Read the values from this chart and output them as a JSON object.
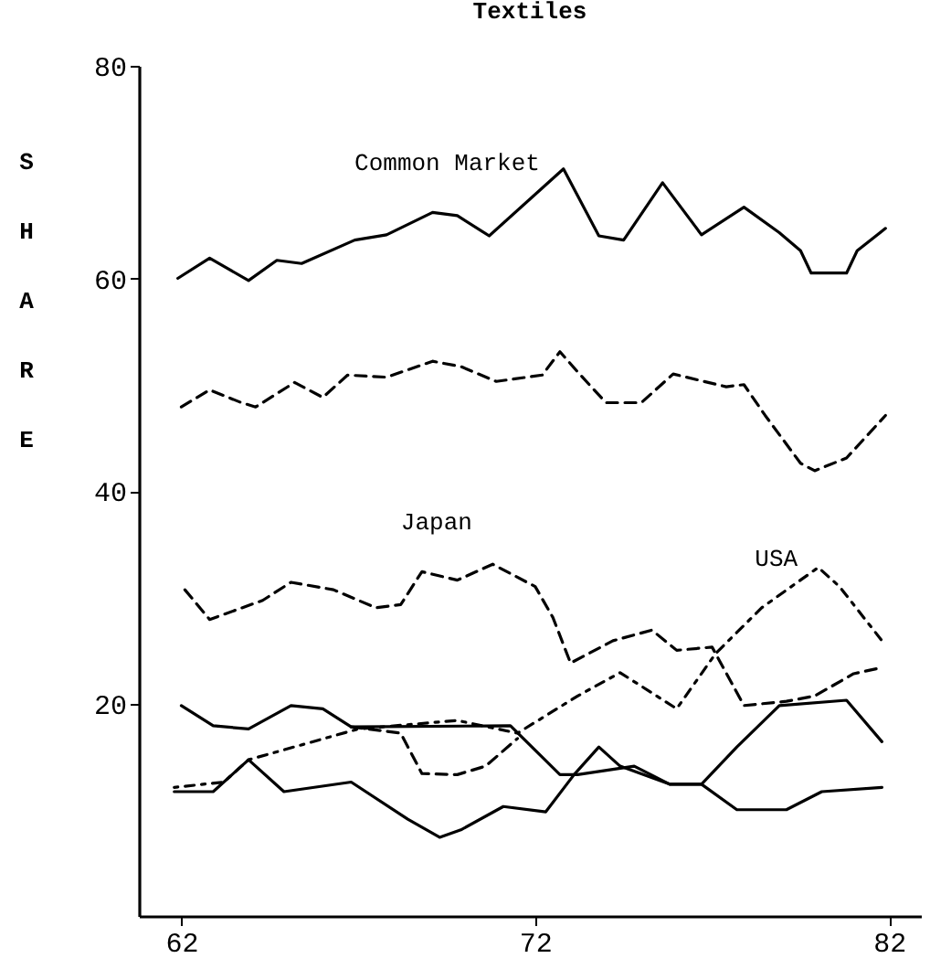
{
  "chart_data": {
    "type": "line",
    "title": "Textiles",
    "ylabel": "SHARE",
    "xlim": [
      60.8,
      82.9
    ],
    "xticks": [
      62,
      72,
      82
    ],
    "ylim": [
      0,
      80
    ],
    "yticks": [
      20,
      40,
      60,
      80
    ],
    "marker": "none",
    "annotations": [
      {
        "text": "Common Market",
        "x": 69.1,
        "y": 66.2
      },
      {
        "text": "Japan",
        "x": 68.8,
        "y": 32.4
      },
      {
        "text": "USA",
        "x": 78.4,
        "y": 29.0
      }
    ],
    "series": [
      {
        "color": "#000000",
        "line_style": "solid",
        "x": [
          61.9,
          62.8,
          63.9,
          64.7,
          65.4,
          66.9,
          67.8,
          69.1,
          69.8,
          70.7,
          72.8,
          73.8,
          74.5,
          75.6,
          76.7,
          77.9,
          78.9,
          79.5,
          79.8,
          80.8,
          81.1,
          81.9
        ],
        "values": [
          60.0,
          61.9,
          59.8,
          61.7,
          61.4,
          63.6,
          64.1,
          66.2,
          65.9,
          64.0,
          70.3,
          64.0,
          63.6,
          69.0,
          64.1,
          66.7,
          64.3,
          62.6,
          60.5,
          60.5,
          62.6,
          64.7
        ]
      },
      {
        "color": "#000000",
        "line_style": "dashed",
        "x": [
          62.0,
          62.8,
          63.7,
          64.1,
          65.2,
          66.0,
          66.7,
          67.8,
          69.1,
          69.9,
          70.9,
          72.2,
          72.7,
          73.2,
          74.0,
          75.0,
          75.9,
          77.4,
          77.9,
          78.5,
          79.5,
          79.9,
          80.8,
          81.9
        ],
        "values": [
          47.9,
          49.5,
          48.3,
          47.9,
          50.2,
          48.8,
          50.9,
          50.7,
          52.2,
          51.7,
          50.3,
          50.9,
          53.1,
          51.2,
          48.3,
          48.3,
          51.0,
          49.8,
          50.0,
          47.1,
          42.6,
          41.9,
          43.1,
          47.1
        ]
      },
      {
        "color": "#000000",
        "line_style": "dashed",
        "x": [
          62.1,
          62.8,
          64.3,
          65.1,
          66.3,
          67.5,
          68.2,
          68.8,
          69.8,
          70.8,
          72.0,
          72.5,
          73.0,
          74.2,
          75.3,
          76.0,
          77.0,
          77.9,
          79.1,
          79.9,
          81.0,
          81.7
        ],
        "values": [
          30.7,
          27.9,
          29.7,
          31.4,
          30.7,
          29.0,
          29.3,
          32.4,
          31.6,
          33.1,
          31.0,
          28.1,
          23.8,
          25.9,
          26.9,
          25.0,
          25.3,
          19.8,
          20.2,
          20.7,
          22.8,
          23.3
        ]
      },
      {
        "color": "#000000",
        "line_style": "dotted",
        "x": [
          61.8,
          63.2,
          63.9,
          67.0,
          69.8,
          71.5,
          73.2,
          74.4,
          76.0,
          77.1,
          78.4,
          80.0,
          80.6,
          81.8
        ],
        "values": [
          12.1,
          12.6,
          14.7,
          17.6,
          18.4,
          17.2,
          20.7,
          22.9,
          19.5,
          24.7,
          29.0,
          32.8,
          31.0,
          25.9
        ]
      },
      {
        "color": "#000000",
        "line_style": "dashed",
        "x": [
          66.8,
          68.2,
          68.8,
          69.8,
          70.6,
          71.5
        ],
        "values": [
          17.8,
          17.2,
          13.4,
          13.3,
          14.1,
          16.7
        ]
      },
      {
        "color": "#000000",
        "line_style": "solid",
        "x": [
          62.0,
          62.9,
          63.9,
          65.1,
          66.0,
          66.8,
          71.3,
          72.7,
          73.2,
          74.8,
          75.8,
          76.7,
          77.7,
          78.9,
          80.8,
          81.8
        ],
        "values": [
          19.8,
          17.9,
          17.6,
          19.8,
          19.5,
          17.8,
          17.9,
          13.3,
          13.3,
          14.1,
          12.4,
          12.4,
          15.9,
          19.8,
          20.3,
          16.4
        ]
      },
      {
        "color": "#000000",
        "line_style": "solid",
        "x": [
          61.8,
          62.9,
          63.9,
          64.9,
          66.8,
          68.4,
          69.3,
          69.9,
          71.1,
          72.3,
          73.1,
          73.8,
          74.4,
          75.8,
          76.7,
          77.7,
          79.1,
          80.1,
          81.8
        ],
        "values": [
          11.7,
          11.7,
          14.7,
          11.7,
          12.6,
          9.1,
          7.4,
          8.1,
          10.3,
          9.8,
          13.3,
          15.9,
          14.1,
          12.4,
          12.4,
          10.0,
          10.0,
          11.7,
          12.1
        ]
      }
    ]
  }
}
